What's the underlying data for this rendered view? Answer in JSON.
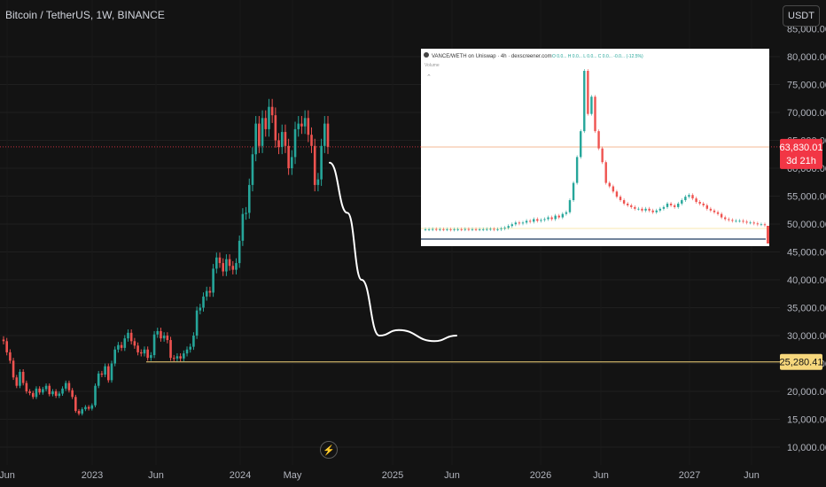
{
  "header": {
    "title": "Bitcoin / TetherUS, 1W, BINANCE"
  },
  "currency_button": {
    "label": "USDT"
  },
  "chart_data": {
    "type": "candlestick",
    "title": "Bitcoin / TetherUS, 1W, BINANCE",
    "ylim": [
      7000,
      83000
    ],
    "y_ticks": [
      10000,
      15000,
      20000,
      25000,
      30000,
      35000,
      40000,
      45000,
      50000,
      55000,
      60000,
      65000,
      70000,
      75000,
      80000
    ],
    "y_tick_labels": [
      "10,000.00",
      "15,000.00",
      "20,000.00",
      "25,000.00",
      "30,000.00",
      "35,000.00",
      "40,000.00",
      "45,000.00",
      "50,000.00",
      "55,000.00",
      "60,000.00",
      "65,000.00",
      "70,000.00",
      "75,000.00",
      "80,000.00"
    ],
    "x_tick_labels": [
      "Jun",
      "2023",
      "Jun",
      "2024",
      "May",
      "2025",
      "Jun",
      "2026",
      "Jun",
      "2027",
      "Jun"
    ],
    "current_price": {
      "value": 63830.01,
      "label": "63,830.01",
      "countdown": "3d 21h",
      "color": "#f23645"
    },
    "support_level": {
      "value": 25280.41,
      "label": "25,280.41",
      "color": "#f7d77c"
    },
    "series": [
      {
        "name": "candles",
        "values": [
          29000,
          27000,
          25500,
          22500,
          21000,
          23500,
          21500,
          20000,
          19700,
          19000,
          20500,
          19800,
          20400,
          21000,
          19500,
          20000,
          19200,
          19600,
          20500,
          21500,
          20200,
          19000,
          16500,
          16000,
          16800,
          17200,
          16900,
          17500,
          21000,
          23200,
          23000,
          24500,
          22000,
          25000,
          27500,
          28300,
          27800,
          29500,
          30500,
          29000,
          28200,
          27000,
          26800,
          27500,
          26000,
          26500,
          30200,
          30800,
          29500,
          30000,
          29200,
          26000,
          25900,
          26300,
          25900,
          26800,
          27500,
          28000,
          30000,
          34500,
          35000,
          37000,
          38000,
          37700,
          42000,
          44000,
          43000,
          41500,
          43700,
          42500,
          41800,
          43000,
          47000,
          51800,
          52000,
          57000,
          62500,
          68000,
          64000,
          69000,
          67000,
          71000,
          69500,
          65000,
          63800,
          66500,
          64000,
          60000,
          62000,
          67000,
          68000,
          67500,
          69000,
          66000,
          64000,
          57000,
          58000,
          64000,
          68000,
          63830
        ]
      }
    ],
    "projection": {
      "values": [
        61000,
        52000,
        40000,
        30000,
        31000,
        29000,
        30000
      ]
    }
  },
  "inset": {
    "title": "VANCE/WETH on Uniswap · 4h · dexscreener.com",
    "ohlc": "O 0.0...  H 0.0...  L 0.0...  C 0.0...  -0.0... (-12.5%)",
    "volume_label": "Volume",
    "chart_data": {
      "type": "candlestick",
      "series": [
        {
          "name": "",
          "values": [
            3,
            3,
            3.2,
            3,
            3.1,
            3,
            3,
            2.9,
            3,
            3.1,
            3,
            3.2,
            3,
            3.1,
            3,
            3,
            3.1,
            3.2,
            3.3,
            3,
            3.1,
            3.5,
            4,
            5,
            6,
            7,
            6.5,
            7,
            8,
            7.5,
            9,
            8,
            8.5,
            9,
            10,
            9,
            11,
            10,
            12,
            13,
            20,
            30,
            45,
            60,
            95,
            70,
            80,
            60,
            50,
            42,
            30,
            28,
            25,
            22,
            20,
            18,
            17,
            16,
            15,
            15,
            14,
            15,
            14,
            13,
            14,
            15,
            16,
            18,
            17,
            16,
            18,
            20,
            22,
            23,
            21,
            19,
            18,
            17,
            15,
            14,
            13,
            12,
            10,
            9,
            8.5,
            8,
            8,
            8,
            7.5,
            7,
            7,
            6.5,
            6,
            6,
            5.5
          ]
        }
      ],
      "level_line": "orange"
    }
  }
}
